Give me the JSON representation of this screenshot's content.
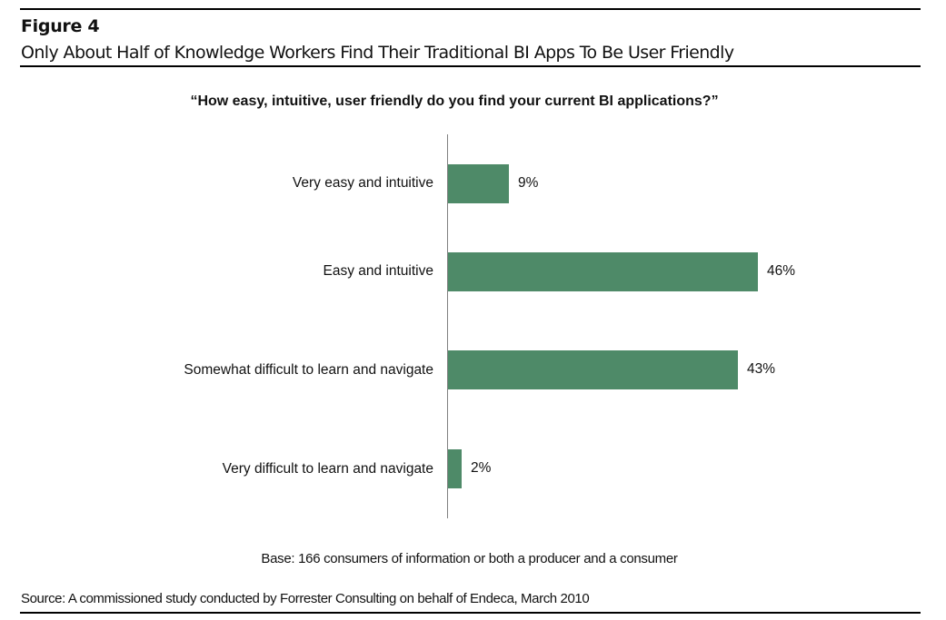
{
  "figure": {
    "label": "Figure 4",
    "title": "Only About Half of Knowledge Workers Find Their Traditional BI Apps To Be User Friendly"
  },
  "chart_data": {
    "type": "bar",
    "orientation": "horizontal",
    "title": "“How easy, intuitive,  user friendly do you find your current BI applications?”",
    "categories": [
      "Very easy and intuitive",
      "Easy and intuitive",
      "Somewhat difficult to learn and navigate",
      "Very difficult to learn and navigate"
    ],
    "values": [
      9,
      46,
      43,
      2
    ],
    "value_labels": [
      "9%",
      "46%",
      "43%",
      "2%"
    ],
    "unit": "%",
    "xlabel": "",
    "ylabel": "",
    "xlim": [
      0,
      50
    ],
    "grid": false,
    "legend": null,
    "bar_color": "#4e8a68"
  },
  "notes": {
    "base": "Base: 166 consumers of information or both a producer and a consumer",
    "source": "Source: A commissioned study conducted by Forrester Consulting on behalf of Endeca, March 2010"
  }
}
